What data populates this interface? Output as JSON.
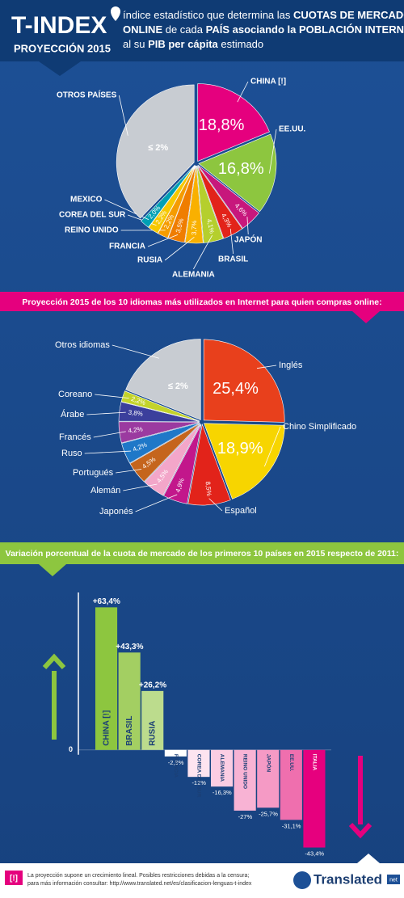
{
  "header": {
    "title": "T-INDEX",
    "subtitle": "PROYECCIÓN 2015",
    "description": [
      [
        "índice estadístico que determina las ",
        "CUOTAS DE MERCADO"
      ],
      [
        "ONLINE",
        " de cada ",
        "PAÍS asociando la POBLACIÓN INTERNET"
      ],
      [
        "al su ",
        "PIB per cápita",
        " estimado"
      ]
    ]
  },
  "chart_data": [
    {
      "type": "pie",
      "note": "≤ 2%",
      "categories": [
        "CHINA [!]",
        "EE.UU.",
        "JAPÓN",
        "BRASIL",
        "ALEMANIA",
        "RUSIA",
        "FRANCIA",
        "REINO UNIDO",
        "COREA DEL SUR",
        "MEXICO",
        "OTROS PAÍSES"
      ],
      "values": [
        18.8,
        16.8,
        4.6,
        4.3,
        4.1,
        3.7,
        3.5,
        2.2,
        2.2,
        2.0,
        37.8
      ],
      "value_labels": [
        "18,8%",
        "16,8%",
        "4,6%",
        "4,3%",
        "4,1%",
        "3,7%",
        "3,5%",
        "2,2%",
        "2,2%",
        "2,0%",
        null
      ],
      "colors": [
        "#e5007e",
        "#8dc63f",
        "#c7177c",
        "#e2231a",
        "#b5cf2d",
        "#f9b000",
        "#ef7d00",
        "#f59c00",
        "#f6c800",
        "#00a0b4",
        "#c8ccd2"
      ]
    },
    {
      "type": "pie",
      "title": "Proyección 2015 de los 10 idiomas más utilizados en Internet para quien compras online:",
      "note": "≤ 2%",
      "categories": [
        "Inglés",
        "Chino Simplificado",
        "Español",
        "Japonés",
        "Alemán",
        "Portugués",
        "Ruso",
        "Francés",
        "Árabe",
        "Coreano",
        "Otros idiomas"
      ],
      "values": [
        25.4,
        18.9,
        8.5,
        4.9,
        4.5,
        4.5,
        4.2,
        4.2,
        3.8,
        2.2,
        18.9
      ],
      "value_labels": [
        "25,4%",
        "18,9%",
        "8,5%",
        "4,9%",
        "4,5%",
        "4,5%",
        "4,2%",
        "4,2%",
        "3,8%",
        "2,2%",
        null
      ],
      "colors": [
        "#e8401c",
        "#f7d500",
        "#e2231a",
        "#c2178b",
        "#f3a6c9",
        "#c5651d",
        "#1f78c8",
        "#9b3aa0",
        "#3b3f9c",
        "#c3d32b",
        "#c8ccd2"
      ]
    },
    {
      "type": "bar",
      "title": "Variación porcentual de la cuota de mercado de los primeros 10 países en 2015 respecto de 2011:",
      "categories": [
        "CHINA [!]",
        "BRASIL",
        "RUSIA",
        "FRANCIA",
        "COREA DEL SUR",
        "ALEMANIA",
        "REINO UNIDO",
        "JAPÓN",
        "EE.UU.",
        "ITALIA"
      ],
      "values": [
        63.4,
        43.3,
        26.2,
        -2.9,
        -12,
        -16.3,
        -27,
        -25.7,
        -31.1,
        -43.4
      ],
      "value_labels": [
        "+63,4%",
        "+43,3%",
        "+26,2%",
        "-2,9%",
        "-12%",
        "-16,3%",
        "-27%",
        "-25,7%",
        "-31,1%",
        "-43,4%"
      ],
      "colors": [
        "#8dc63f",
        "#a3cf62",
        "#bcdc8d",
        "#ffffff",
        "#fde4f0",
        "#fbcde3",
        "#f8b3d4",
        "#f59ac5",
        "#ef6fae",
        "#e6007e"
      ],
      "ylim": [
        -45,
        70
      ],
      "yticks": [
        0
      ]
    }
  ],
  "footer": {
    "icon": "[!]",
    "lines": [
      "La proyección supone un crecimiento lineal. Posibles restricciones debidas a la censura;",
      "para más información consultar: http://www.translated.net/es/clasificacion-lenguas-t-index"
    ],
    "logo": "Translated",
    "logo_suffix": "net"
  }
}
